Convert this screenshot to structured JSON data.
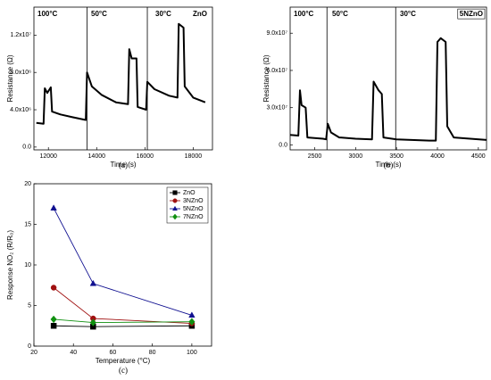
{
  "chart_data": [
    {
      "type": "line",
      "caption": "(a)",
      "xlabel": "Time (s)",
      "ylabel": "Resistance (Ω)",
      "color": "#000000",
      "x": [
        11500,
        11800,
        11850,
        11950,
        12050,
        12100,
        12150,
        12500,
        13000,
        13550,
        13600,
        13800,
        14200,
        14800,
        15300,
        15350,
        15450,
        15650,
        15700,
        16050,
        16100,
        16400,
        17000,
        17350,
        17400,
        17600,
        17650,
        18000,
        18500
      ],
      "values": [
        2600000,
        2500000,
        6300000,
        5800000,
        6200000,
        6400000,
        3800000,
        3500000,
        3200000,
        2900000,
        8000000,
        6500000,
        5600000,
        4800000,
        4600000,
        10500000,
        9500000,
        9500000,
        4300000,
        4000000,
        7000000,
        6200000,
        5500000,
        5300000,
        13200000,
        12800000,
        6500000,
        5300000,
        4800000
      ],
      "xlim": [
        11400,
        18800
      ],
      "xticks": [
        12000,
        14000,
        16000,
        18000
      ],
      "ylim": [
        -300000,
        15000000
      ],
      "yticks": [
        {
          "value": 0,
          "label": "0.0"
        },
        {
          "value": 4000000,
          "label": "4.0x10⁶"
        },
        {
          "value": 8000000,
          "label": "8.0x10⁶"
        },
        {
          "value": 12000000,
          "label": "1.2x10⁷"
        }
      ],
      "vlines": [
        13600,
        16100
      ],
      "annotations": [
        "100°C",
        "50°C",
        "30°C",
        "ZnO"
      ]
    },
    {
      "type": "line",
      "caption": "(b)",
      "xlabel": "Time (s)",
      "ylabel": "Resistance (Ω)",
      "color": "#000000",
      "x": [
        2200,
        2300,
        2320,
        2340,
        2390,
        2410,
        2600,
        2640,
        2660,
        2700,
        2800,
        3000,
        3200,
        3220,
        3280,
        3320,
        3340,
        3500,
        3900,
        3980,
        4000,
        4040,
        4100,
        4120,
        4200,
        4600
      ],
      "values": [
        8000000,
        7500000,
        44000000,
        32000000,
        30000000,
        6000000,
        5000000,
        4500000,
        17000000,
        10000000,
        6000000,
        5000000,
        4500000,
        51000000,
        44000000,
        41000000,
        6000000,
        4500000,
        3500000,
        3500000,
        83000000,
        86000000,
        83000000,
        15000000,
        6000000,
        4000000
      ],
      "xlim": [
        2200,
        4600
      ],
      "xticks": [
        2500,
        3000,
        3500,
        4000,
        4500
      ],
      "ylim": [
        -4000000,
        111000000
      ],
      "yticks": [
        {
          "value": 0,
          "label": "0.0"
        },
        {
          "value": 30000000,
          "label": "3.0x10⁷"
        },
        {
          "value": 60000000,
          "label": "6.0x10⁷"
        },
        {
          "value": 90000000,
          "label": "9.0x10⁷"
        }
      ],
      "vlines": [
        2650,
        3490
      ],
      "annotations": [
        "100°C",
        "50°C",
        "30°C",
        "5NZnO"
      ]
    },
    {
      "type": "scatter-line",
      "caption": "(c)",
      "xlabel": "Temperature (°C)",
      "ylabel": "Response NO₂ (R/R₀)",
      "x": [
        30,
        50,
        100
      ],
      "series": [
        {
          "name": "ZnO",
          "color": "#000000",
          "marker": "square",
          "values": [
            2.5,
            2.4,
            2.5
          ]
        },
        {
          "name": "3NZnO",
          "color": "#a01010",
          "marker": "circle",
          "values": [
            7.2,
            3.4,
            2.8
          ]
        },
        {
          "name": "5NZnO",
          "color": "#101090",
          "marker": "triangle",
          "values": [
            17,
            7.7,
            3.8
          ]
        },
        {
          "name": "7NZnO",
          "color": "#109010",
          "marker": "diamond",
          "values": [
            3.3,
            2.9,
            3.0
          ]
        }
      ],
      "xlim": [
        20,
        110
      ],
      "xticks": [
        20,
        40,
        60,
        80,
        100
      ],
      "ylim": [
        0,
        20
      ],
      "yticks": [
        0,
        5,
        10,
        15,
        20
      ],
      "legend": "upper right"
    }
  ]
}
